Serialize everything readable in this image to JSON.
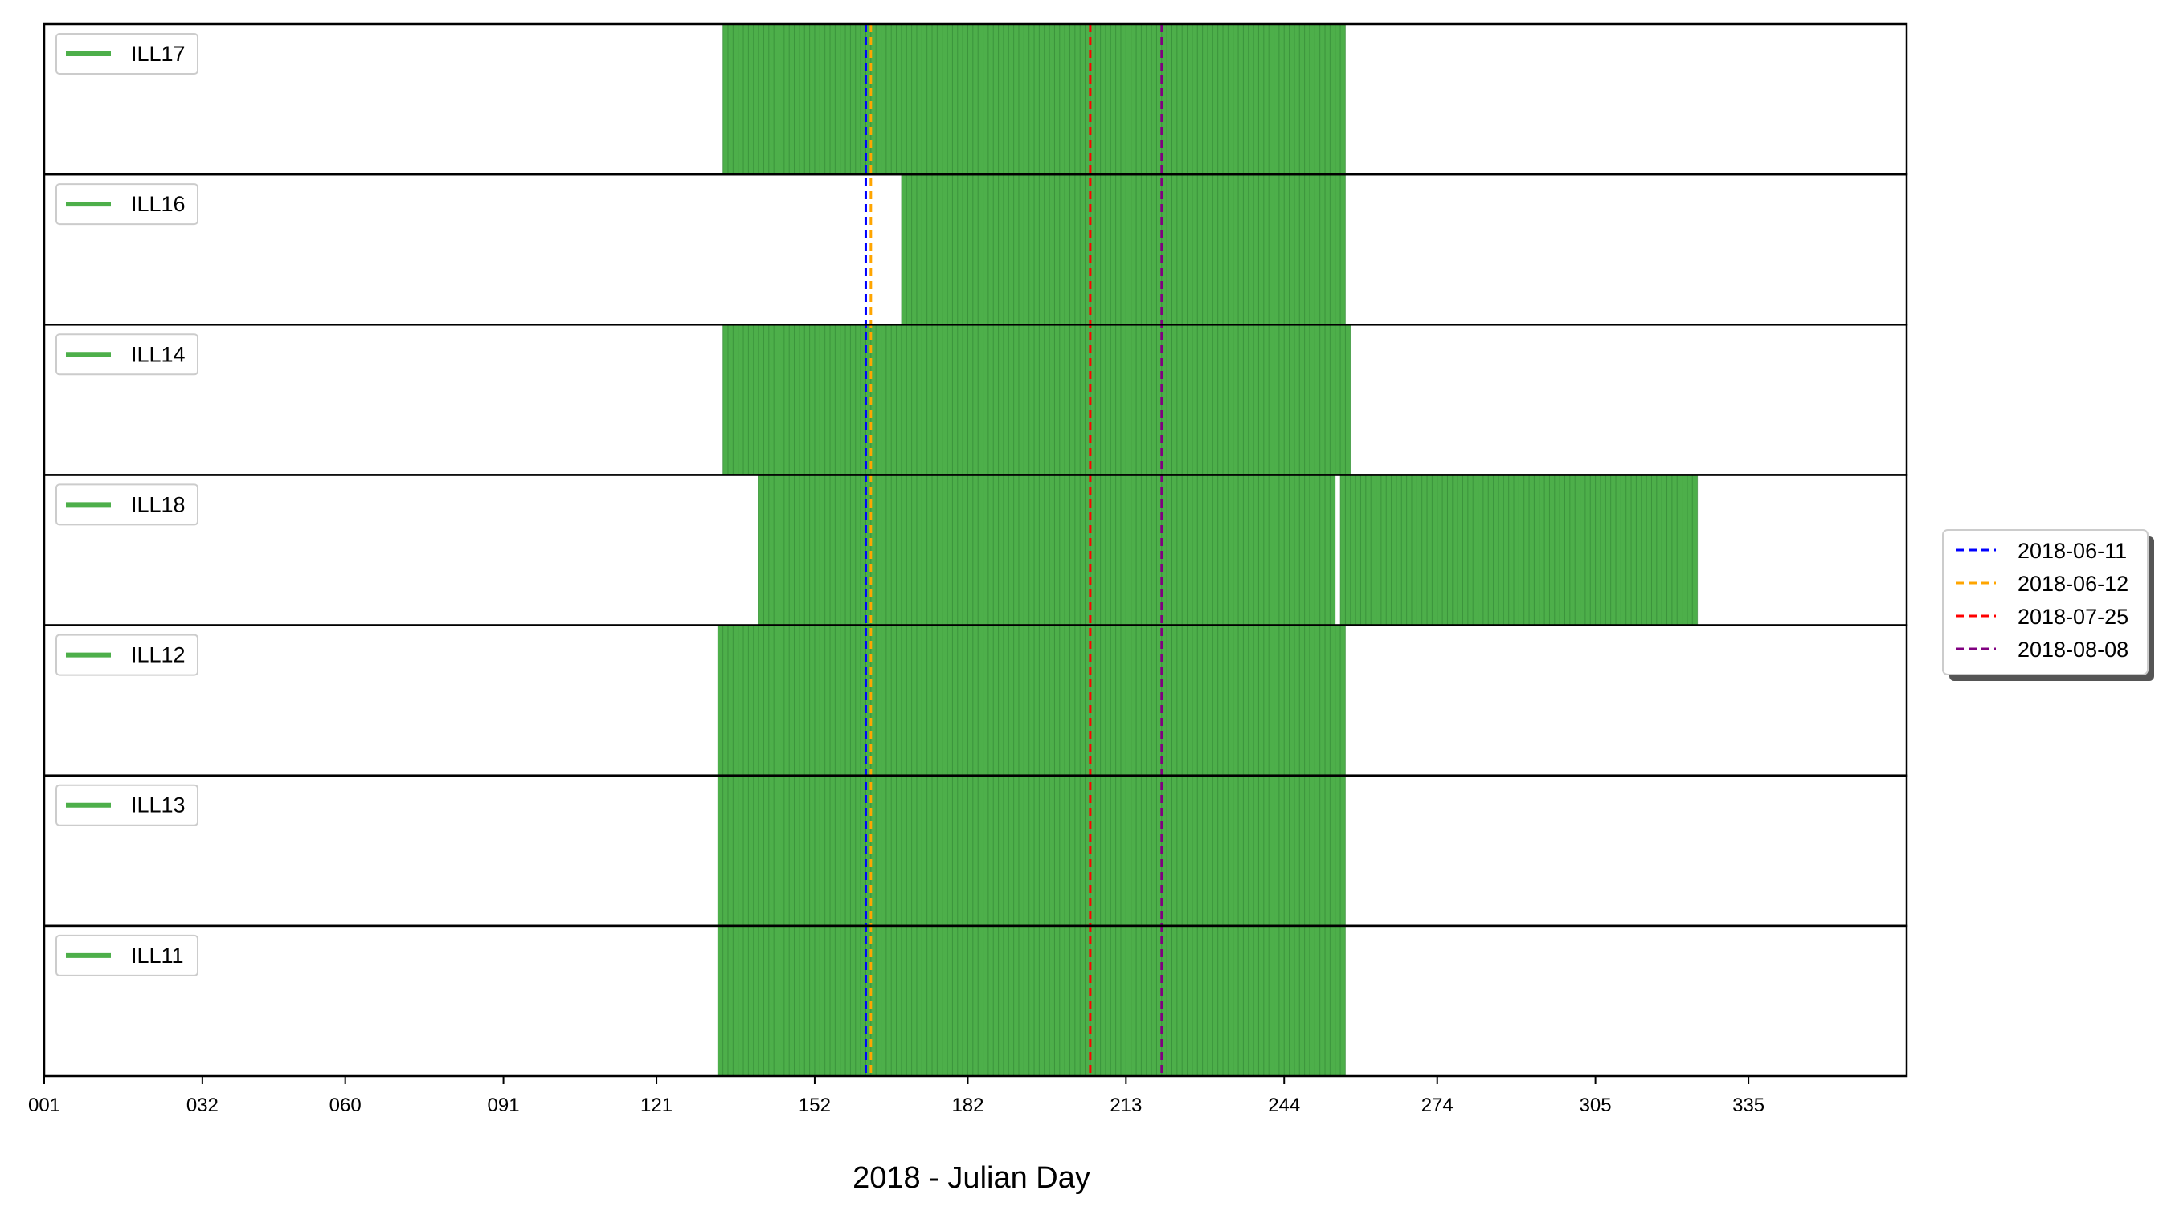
{
  "chart_data": {
    "type": "bar",
    "subtype": "stacked-panel-availability",
    "title": "",
    "xlabel": "2018 - Julian Day",
    "ylabel": "",
    "xlim": [
      1,
      366
    ],
    "x_ticks": [
      "001",
      "032",
      "060",
      "091",
      "121",
      "152",
      "182",
      "213",
      "244",
      "274",
      "305",
      "335"
    ],
    "x_tick_values": [
      1,
      32,
      60,
      91,
      121,
      152,
      182,
      213,
      244,
      274,
      305,
      335
    ],
    "bar_color": "#4daf4a",
    "bar_edge_color": "#2e7d32",
    "grid": false,
    "panels": [
      {
        "name": "ILL17",
        "ranges": [
          [
            134,
            255
          ]
        ]
      },
      {
        "name": "ILL16",
        "ranges": [
          [
            169,
            255
          ]
        ]
      },
      {
        "name": "ILL14",
        "ranges": [
          [
            134,
            256
          ]
        ]
      },
      {
        "name": "ILL18",
        "ranges": [
          [
            141,
            253
          ],
          [
            255,
            324
          ]
        ]
      },
      {
        "name": "ILL12",
        "ranges": [
          [
            133,
            255
          ]
        ]
      },
      {
        "name": "ILL13",
        "ranges": [
          [
            133,
            255
          ]
        ]
      },
      {
        "name": "ILL11",
        "ranges": [
          [
            133,
            255
          ]
        ]
      }
    ],
    "vlines": [
      {
        "label": "2018-06-11",
        "day": 162,
        "color": "#0000ff"
      },
      {
        "label": "2018-06-12",
        "day": 163,
        "color": "#ffa500"
      },
      {
        "label": "2018-07-25",
        "day": 206,
        "color": "#ff0000"
      },
      {
        "label": "2018-08-08",
        "day": 220,
        "color": "#800080"
      }
    ],
    "legend_position": "right"
  }
}
